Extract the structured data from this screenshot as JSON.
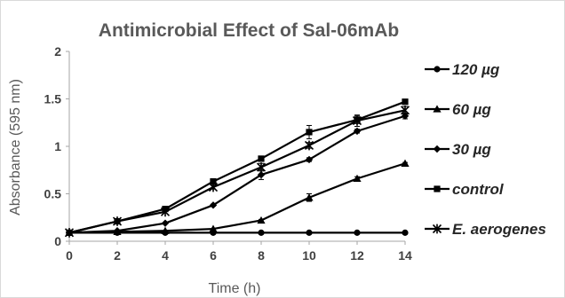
{
  "chart_data": {
    "type": "line",
    "title": "Antimicrobial Effect of Sal-06mAb",
    "xlabel": "Time (h)",
    "ylabel": "Absorbance (595 nm)",
    "xlim": [
      0,
      14
    ],
    "ylim": [
      0,
      2
    ],
    "x_ticks": [
      "0",
      "2",
      "4",
      "6",
      "8",
      "10",
      "12",
      "14"
    ],
    "y_ticks": [
      "0",
      "0.5",
      "1",
      "1.5",
      "2"
    ],
    "x": [
      0,
      2,
      4,
      6,
      8,
      10,
      12,
      14
    ],
    "grid": false,
    "legend_position": "right",
    "series": [
      {
        "name": "120 µg",
        "marker": "circle",
        "values": [
          0.09,
          0.09,
          0.09,
          0.09,
          0.09,
          0.09,
          0.09,
          0.09
        ],
        "errors": [
          0,
          0,
          0,
          0,
          0,
          0,
          0,
          0
        ]
      },
      {
        "name": "60 µg",
        "marker": "triangle",
        "values": [
          0.09,
          0.1,
          0.11,
          0.13,
          0.22,
          0.46,
          0.66,
          0.82
        ],
        "errors": [
          0,
          0,
          0,
          0,
          0.01,
          0.04,
          0.02,
          0.01
        ]
      },
      {
        "name": "30 µg",
        "marker": "diamond",
        "values": [
          0.09,
          0.11,
          0.19,
          0.38,
          0.7,
          0.86,
          1.16,
          1.32
        ],
        "errors": [
          0,
          0,
          0,
          0.01,
          0.05,
          0.02,
          0.02,
          0.03
        ]
      },
      {
        "name": "control",
        "marker": "square",
        "values": [
          0.09,
          0.21,
          0.34,
          0.63,
          0.87,
          1.15,
          1.28,
          1.47
        ],
        "errors": [
          0,
          0,
          0.01,
          0.01,
          0.01,
          0.07,
          0.04,
          0.01
        ]
      },
      {
        "name": "E. aerogenes",
        "marker": "star",
        "values": [
          0.09,
          0.21,
          0.31,
          0.57,
          0.78,
          1.01,
          1.27,
          1.38
        ],
        "errors": [
          0,
          0,
          0,
          0.02,
          0.04,
          0.03,
          0.06,
          0.04
        ]
      }
    ],
    "colors": {
      "series": "#000000",
      "axis": "#a6a6a6",
      "text": "#595959"
    }
  }
}
